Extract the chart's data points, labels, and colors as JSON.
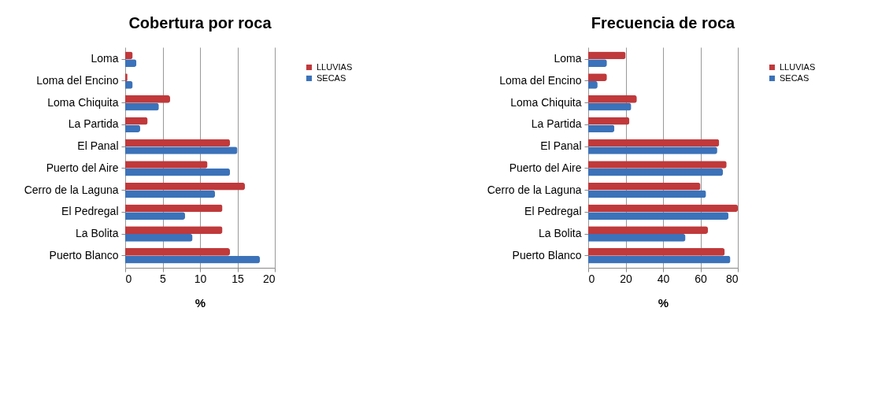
{
  "chart_data": [
    {
      "type": "bar",
      "orientation": "horizontal",
      "title": "Cobertura por roca",
      "xlabel": "%",
      "categories": [
        "Loma",
        "Loma del Encino",
        "Loma Chiquita",
        "La Partida",
        "El Panal",
        "Puerto del Aire",
        "Cerro de la Laguna",
        "El Pedregal",
        "La Bolita",
        "Puerto Blanco"
      ],
      "series": [
        {
          "name": "LLUVIAS",
          "color": "#c0393b",
          "values": [
            1,
            0.3,
            6,
            3,
            14,
            11,
            16,
            13,
            13,
            14
          ]
        },
        {
          "name": "SECAS",
          "color": "#3b72b9",
          "values": [
            1.5,
            1,
            4.5,
            2,
            15,
            14,
            12,
            8,
            9,
            18
          ]
        }
      ],
      "xlim": [
        0,
        20
      ],
      "xticks": [
        0,
        5,
        10,
        15,
        20
      ],
      "grid": "x",
      "legend": "right"
    },
    {
      "type": "bar",
      "orientation": "horizontal",
      "title": "Frecuencia de roca",
      "xlabel": "%",
      "categories": [
        "Loma",
        "Loma del Encino",
        "Loma Chiquita",
        "La Partida",
        "El Panal",
        "Puerto del Aire",
        "Cerro de la Laguna",
        "El Pedregal",
        "La Bolita",
        "Puerto Blanco"
      ],
      "series": [
        {
          "name": "LLUVIAS",
          "color": "#c0393b",
          "values": [
            20,
            10,
            26,
            22,
            70,
            74,
            60,
            80,
            64,
            73
          ]
        },
        {
          "name": "SECAS",
          "color": "#3b72b9",
          "values": [
            10,
            5,
            23,
            14,
            69,
            72,
            63,
            75,
            52,
            76
          ]
        }
      ],
      "xlim": [
        0,
        80
      ],
      "xticks": [
        0,
        20,
        40,
        60,
        80
      ],
      "grid": "x",
      "legend": "right"
    }
  ]
}
